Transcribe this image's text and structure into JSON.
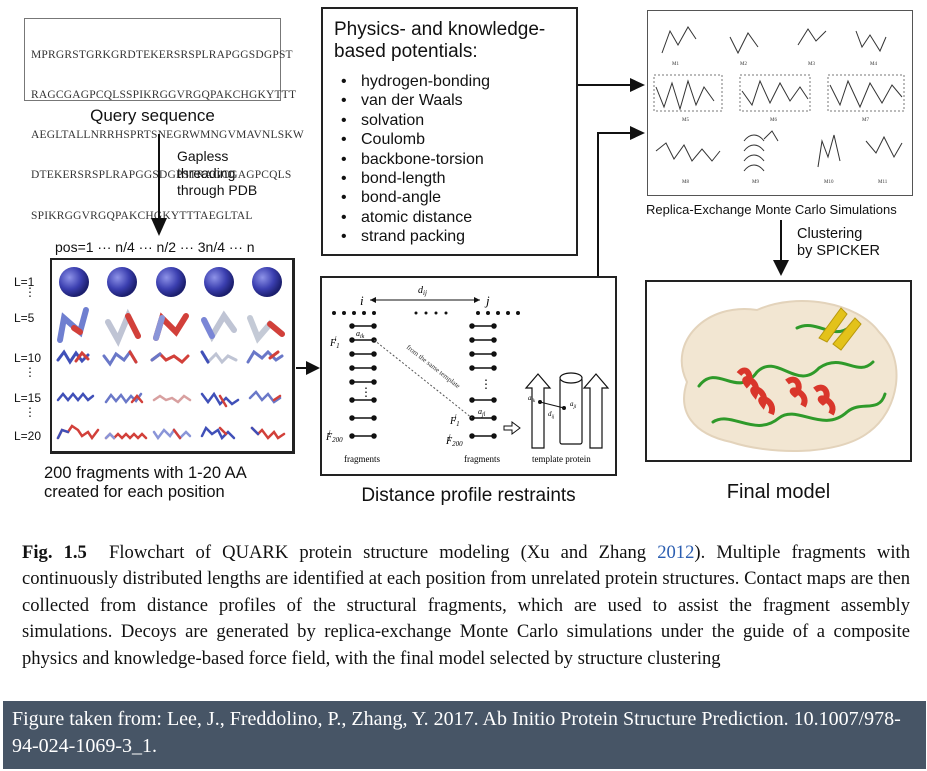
{
  "query": {
    "sequence_lines": [
      "MPRGRSTGRKGRDTEKERSRSPLRAPGGSDGPST",
      "RAGCGAGPCQLSSPIKRGGVRGQPAKCHGKYTTT",
      "AEGLTALLNRRHSPRTSNEGRWMNGVMAVNLSKW",
      "DTEKERSRSPLRAPGGSDGPSTRAGCGAGPCQLS",
      "SPIKRGGVRGQPAKCHGKYTTTAEGLTAL"
    ],
    "label": "Query sequence"
  },
  "threading_label": "Gapless\nthreading\nthrough PDB",
  "fragments": {
    "pos_header": "pos=1 ··· n/4 ··· n/2 ··· 3n/4 ··· n",
    "row_labels": [
      "L=1",
      "L=5",
      "L=10",
      "L=15",
      "L=20"
    ],
    "caption": "200 fragments with 1-20 AA\ncreated for each position"
  },
  "physics": {
    "title": "Physics- and knowledge-\nbased potentials:",
    "items": [
      "hydrogen-bonding",
      "van der Waals",
      "solvation",
      "Coulomb",
      "backbone-torsion",
      "bond-length",
      "bond-angle",
      "atomic distance",
      "strand packing"
    ]
  },
  "distance": {
    "label": "Distance profile restraints",
    "i": "i",
    "j": "j",
    "dij": "d",
    "dij_sub": "ij",
    "fi": "F",
    "fi_sub": "1",
    "fi_sup": "i",
    "fi200": "F",
    "fi200_sub": "200",
    "fi200_sup": "i",
    "fj": "F",
    "fj_sub": "1",
    "fj_sup": "j",
    "fj200": "F",
    "fj200_sub": "200",
    "fj200_sup": "j",
    "aik": "a",
    "aik_sub": "ik",
    "ajl": "a",
    "ajl_sub": "jl",
    "aijs": [
      "a",
      "a"
    ],
    "aijs_sub": [
      "ik",
      "jl"
    ],
    "dij_tpl": "d",
    "dij_tpl_sub": "ij",
    "same_template": "from the same template",
    "fragments_label": "fragments",
    "template_label": "template protein"
  },
  "remc": {
    "models": [
      "M1",
      "M2",
      "M3",
      "M4",
      "M5",
      "M6",
      "M7",
      "M8",
      "M9",
      "M10",
      "M11"
    ],
    "label": "Replica-Exchange Monte Carlo Simulations"
  },
  "clustering_label": "Clustering\nby SPICKER",
  "final_label": "Final model",
  "caption": {
    "fig": "Fig. 1.5",
    "text_before": "Flowchart of QUARK protein structure modeling (Xu and Zhang ",
    "year": "2012",
    "text_after": "). Multiple fragments with continuously distributed lengths are identified at each position from unrelated protein structures. Contact maps are then collected from distance profiles of the structural fragments, which are used to assist the fragment assembly simulations. Decoys are generated by replica-exchange Monte Carlo simulations under the guide of a composite physics and knowledge-based force field, with the final model selected by structure clustering"
  },
  "credit": "Figure taken from: Lee, J., Freddolino, P., Zhang, Y. 2017. Ab Initio Protein Structure Prediction. 10.1007/978-94-024-1069-3_1.",
  "colors": {
    "sphere": "#3b3fb0",
    "helix": "#d9362b",
    "sheet": "#e3c21a",
    "coil": "#2f9a2a",
    "surface": "#f2e6d2",
    "credit_bg": "#475566"
  }
}
